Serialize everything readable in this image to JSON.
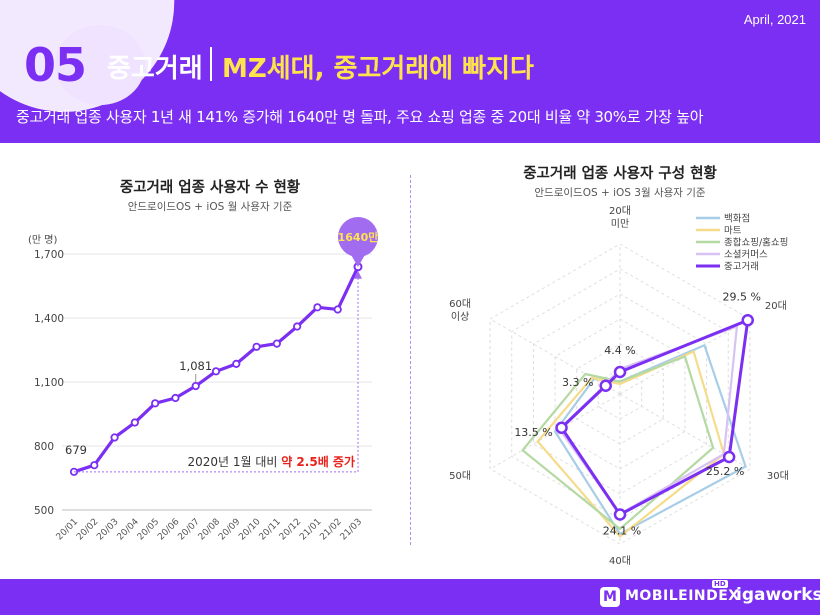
{
  "header": {
    "number": "05",
    "title": "중고거래",
    "subtitle_highlight": "MZ세대, 중고거래에 빠지다",
    "date": "April, 2021",
    "description": "중고거래 업종 사용자 1년 새 141% 증가해 1640만 명 돌파, 주요 쇼핑 업종 중 20대 비율 약 30%로 가장 높아"
  },
  "footer": {
    "logo_mark": "M",
    "logo_text": "MOBILEINDEX",
    "logo_badge": "HD",
    "brand": "igaworks"
  },
  "colors": {
    "primary": "#7b2ff2",
    "highlight_yellow": "#ffe34d",
    "accent_red": "#e8221b",
    "bubble": "#a26cf0"
  },
  "chart_data": [
    {
      "type": "line",
      "title": "중고거래 업종 사용자 수 현황",
      "note": "안드로이드OS + iOS 월 사용자 기준",
      "ylabel": "(만 명)",
      "ylim": [
        500,
        1700
      ],
      "yticks": [
        "500",
        "800",
        "1,100",
        "1,400",
        "1,700"
      ],
      "categories": [
        "20/01",
        "20/02",
        "20/03",
        "20/04",
        "20/05",
        "20/06",
        "20/07",
        "20/08",
        "20/09",
        "20/10",
        "20/11",
        "20/12",
        "21/01",
        "21/02",
        "21/03"
      ],
      "values": [
        679,
        710,
        840,
        910,
        1000,
        1025,
        1081,
        1150,
        1185,
        1265,
        1280,
        1360,
        1450,
        1440,
        1640
      ],
      "labels": {
        "first": "679",
        "mid": "1,081",
        "last": "1640만"
      },
      "annotation": {
        "text": "2020년 1월 대비 ",
        "emphasis": "약 2.5배 증가"
      },
      "color": "#7b2ff2"
    },
    {
      "type": "radar",
      "title": "중고거래 업종 사용자 구성 현황",
      "note": "안드로이드OS + iOS 3월 사용자 기준",
      "axes": [
        "20대\n미만",
        "20대",
        "30대",
        "40대",
        "50대",
        "60대\n이상"
      ],
      "series": [
        {
          "name": "백화점",
          "color": "#a8cde6",
          "values": [
            2.5,
            19.5,
            29.0,
            28.0,
            15.0,
            6.0
          ]
        },
        {
          "name": "마트",
          "color": "#f5dc8a",
          "values": [
            2.0,
            17.0,
            24.0,
            28.5,
            19.0,
            6.5
          ]
        },
        {
          "name": "종합쇼핑/홈쇼핑",
          "color": "#b5d9a3",
          "values": [
            2.5,
            15.0,
            21.5,
            27.0,
            22.5,
            8.0
          ]
        },
        {
          "name": "소셜커머스",
          "color": "#d8c2f4",
          "values": [
            5.0,
            27.0,
            24.0,
            24.0,
            14.0,
            3.5
          ]
        },
        {
          "name": "중고거래",
          "color": "#7b2ff2",
          "values": [
            4.4,
            29.5,
            25.2,
            24.1,
            13.5,
            3.3
          ]
        }
      ],
      "data_labels": [
        "4.4 %",
        "29.5 %",
        "25.2 %",
        "24.1 %",
        "13.5 %",
        "3.3 %"
      ]
    }
  ]
}
